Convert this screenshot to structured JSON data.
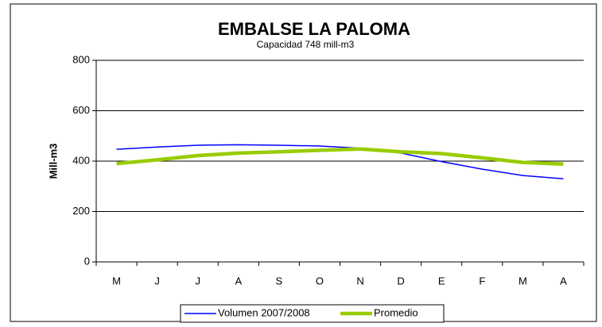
{
  "chart_data": {
    "type": "line",
    "title": "EMBALSE LA PALOMA",
    "subtitle": "Capacidad 748 mill-m3",
    "y_label": "Mill-m3",
    "categories": [
      "M",
      "J",
      "J",
      "A",
      "S",
      "O",
      "N",
      "D",
      "E",
      "F",
      "M",
      "A"
    ],
    "series": [
      {
        "name": "Volumen  2007/2008",
        "color": "#0000ff",
        "width": 1.5,
        "values": [
          447,
          456,
          463,
          465,
          463,
          460,
          451,
          432,
          398,
          368,
          343,
          330
        ]
      },
      {
        "name": "Promedio",
        "color": "#99cc00",
        "width": 4.5,
        "values": [
          390,
          405,
          422,
          432,
          437,
          443,
          448,
          437,
          430,
          413,
          395,
          388
        ]
      }
    ],
    "ylim": [
      0,
      800
    ],
    "yticks": [
      0,
      200,
      400,
      600,
      800
    ],
    "grid": true,
    "legend": "bottom"
  }
}
